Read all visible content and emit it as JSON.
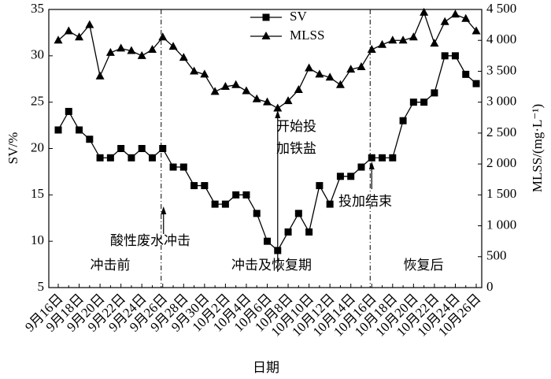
{
  "chart_data": {
    "type": "line",
    "x_label": "日期",
    "y_label": "SV/%",
    "y2_label": "MLSS/(mg·L⁻¹)",
    "categories": [
      "9月16日",
      null,
      "9月18日",
      null,
      "9月20日",
      null,
      "9月22日",
      null,
      "9月24日",
      null,
      "9月26日",
      null,
      "9月28日",
      null,
      "9月30日",
      null,
      "10月2日",
      null,
      "10月4日",
      null,
      "10月6日",
      null,
      "10月8日",
      null,
      "10月10日",
      null,
      "10月12日",
      null,
      "10月14日",
      null,
      "10月16日",
      null,
      "10月18日",
      null,
      "10月20日",
      null,
      "10月22日",
      null,
      "10月24日",
      null,
      "10月26日"
    ],
    "series": [
      {
        "name": "SV",
        "color": "#000000",
        "marker": "square",
        "values": [
          22,
          24,
          22,
          21,
          19,
          19,
          20,
          19,
          20,
          19,
          20,
          18,
          18,
          16,
          16,
          14,
          14,
          15,
          15,
          13,
          10,
          9,
          11,
          13,
          11,
          16,
          14,
          17,
          17,
          18,
          19,
          19,
          19,
          23,
          25,
          25,
          26,
          30,
          30,
          28,
          27
        ]
      },
      {
        "name": "MLSS",
        "color": "#000000",
        "marker": "triangle",
        "axis": "y2",
        "values": [
          4000,
          4150,
          4050,
          4250,
          3420,
          3800,
          3870,
          3830,
          3750,
          3850,
          4050,
          3900,
          3720,
          3500,
          3450,
          3170,
          3250,
          3280,
          3180,
          3050,
          3000,
          2900,
          3020,
          3200,
          3550,
          3450,
          3400,
          3280,
          3530,
          3570,
          3850,
          3930,
          4000,
          4000,
          4050,
          4450,
          3950,
          4300,
          4420,
          4350,
          4150
        ]
      }
    ],
    "ylim": [
      5,
      35
    ],
    "yticks": [
      5,
      10,
      15,
      20,
      25,
      30,
      35
    ],
    "y2lim": [
      0,
      4500
    ],
    "y2ticks": [
      0,
      500,
      {
        "value": 1000,
        "label": "1 000"
      },
      {
        "value": 1500,
        "label": "1 500"
      },
      {
        "value": 2000,
        "label": "2 000"
      },
      {
        "value": 2500,
        "label": "2 500"
      },
      {
        "value": 3000,
        "label": "3 000"
      },
      {
        "value": 3500,
        "label": "3 500"
      },
      {
        "value": 4000,
        "label": "4 000"
      },
      {
        "value": 4500,
        "label": "4 500"
      }
    ],
    "legend": "top",
    "annotations": [
      "酸性废水冲击",
      "开始投",
      "加铁盐",
      "投加结束"
    ],
    "periods": [
      "冲击前",
      "冲击及恢复期",
      "恢复后"
    ]
  }
}
